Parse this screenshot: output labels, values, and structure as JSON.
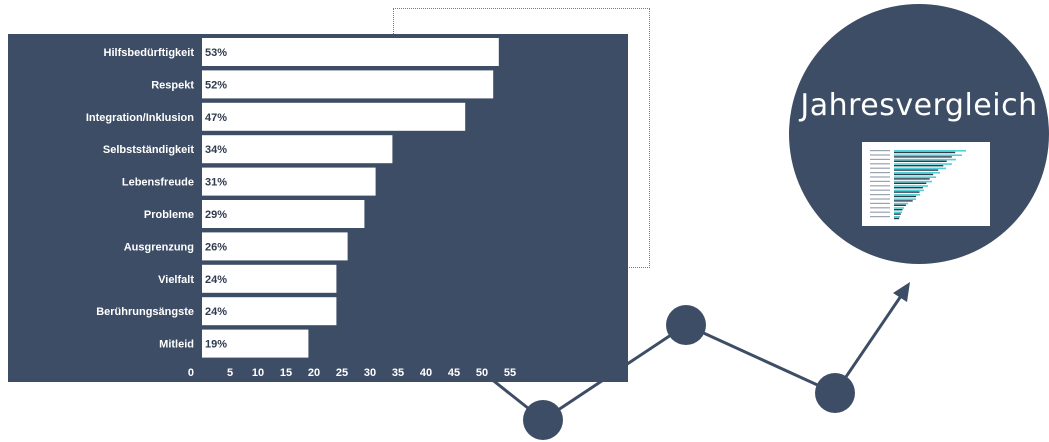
{
  "colors": {
    "panel": "#3e4d66",
    "bar": "#ffffff",
    "node": "#3e4d66",
    "line": "#3e4d66",
    "thumb_bar": "#4fd1d6"
  },
  "badge": {
    "title": "Jahresvergleich"
  },
  "chart_data": {
    "type": "bar",
    "orientation": "horizontal",
    "categories": [
      "Hilfsbedürftigkeit",
      "Respekt",
      "Integration/Inklusion",
      "Selbstständigkeit",
      "Lebensfreude",
      "Probleme",
      "Ausgrenzung",
      "Vielfalt",
      "Berührungsängste",
      "Mitleid"
    ],
    "values": [
      53,
      52,
      47,
      34,
      31,
      29,
      26,
      24,
      24,
      19
    ],
    "value_labels": [
      "53%",
      "52%",
      "47%",
      "34%",
      "31%",
      "29%",
      "26%",
      "24%",
      "24%",
      "19%"
    ],
    "x_ticks": [
      0,
      5,
      10,
      15,
      20,
      25,
      30,
      35,
      40,
      45,
      50,
      55
    ],
    "xlim": [
      0,
      57
    ],
    "grid": false,
    "title": "",
    "xlabel": "",
    "ylabel": ""
  }
}
